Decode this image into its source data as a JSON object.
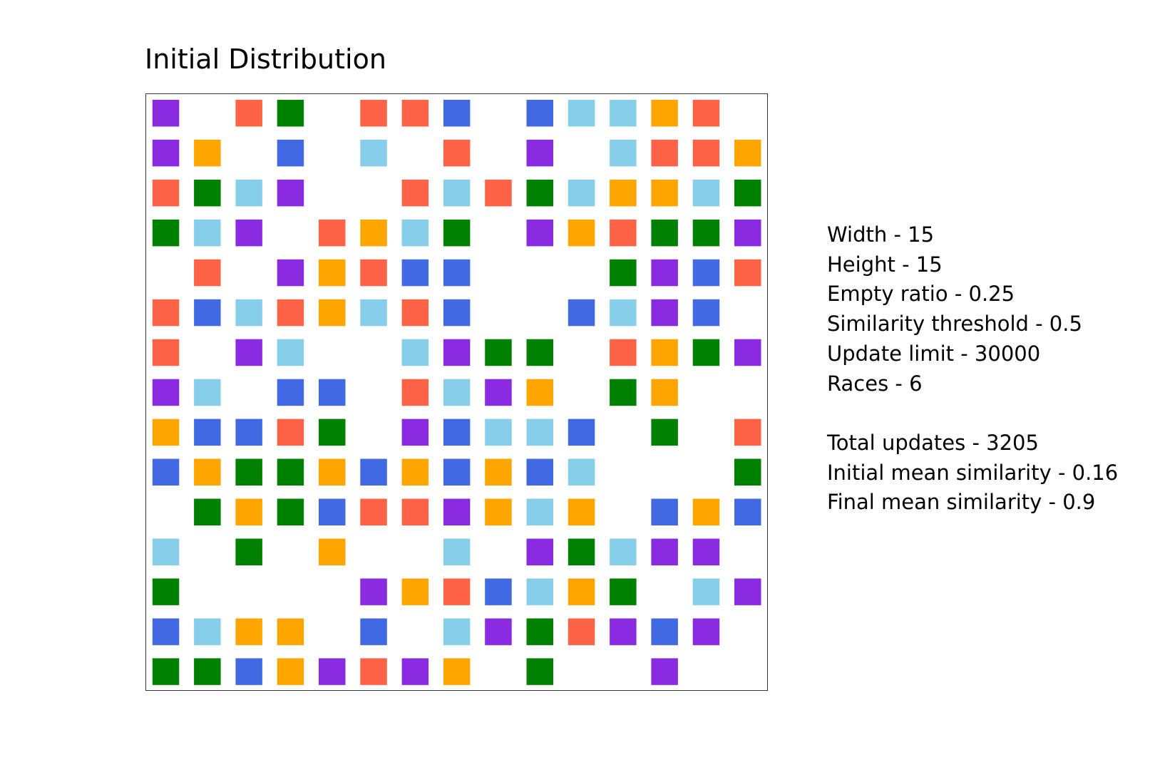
{
  "chart_data": {
    "type": "heatmap",
    "title": "Initial Distribution",
    "xlabel": "",
    "ylabel": "",
    "columns": 15,
    "rows": 15,
    "color_legend": {
      "0": "empty",
      "1": "#8A2BE2",
      "2": "#FF6347",
      "3": "#008000",
      "4": "#4169E1",
      "5": "#87CEEB",
      "6": "#FFA500"
    },
    "cells": [
      [
        1,
        0,
        2,
        3,
        0,
        2,
        2,
        4,
        0,
        4,
        5,
        5,
        6,
        2,
        0
      ],
      [
        1,
        6,
        0,
        4,
        0,
        5,
        0,
        2,
        0,
        1,
        0,
        5,
        2,
        2,
        6
      ],
      [
        2,
        3,
        5,
        1,
        0,
        0,
        2,
        5,
        2,
        3,
        5,
        6,
        6,
        5,
        3
      ],
      [
        3,
        5,
        1,
        0,
        2,
        6,
        5,
        3,
        0,
        1,
        6,
        2,
        3,
        3,
        1
      ],
      [
        0,
        2,
        0,
        1,
        6,
        2,
        4,
        4,
        0,
        0,
        0,
        3,
        1,
        4,
        2
      ],
      [
        2,
        4,
        5,
        2,
        6,
        5,
        2,
        4,
        0,
        0,
        4,
        5,
        1,
        4,
        0
      ],
      [
        2,
        0,
        1,
        5,
        0,
        0,
        5,
        1,
        3,
        3,
        0,
        2,
        6,
        3,
        1
      ],
      [
        1,
        5,
        0,
        4,
        4,
        0,
        2,
        5,
        1,
        6,
        0,
        3,
        6,
        0,
        0
      ],
      [
        6,
        4,
        4,
        2,
        3,
        0,
        1,
        4,
        5,
        5,
        4,
        0,
        3,
        0,
        2
      ],
      [
        4,
        6,
        3,
        3,
        6,
        4,
        6,
        4,
        6,
        4,
        5,
        0,
        0,
        0,
        3
      ],
      [
        0,
        3,
        6,
        3,
        4,
        2,
        2,
        1,
        6,
        5,
        6,
        0,
        4,
        6,
        4
      ],
      [
        5,
        0,
        3,
        0,
        6,
        0,
        0,
        5,
        0,
        1,
        3,
        5,
        1,
        1,
        0
      ],
      [
        3,
        0,
        0,
        0,
        0,
        1,
        6,
        2,
        4,
        5,
        6,
        3,
        0,
        5,
        1
      ],
      [
        4,
        5,
        6,
        6,
        0,
        4,
        0,
        5,
        1,
        3,
        2,
        1,
        4,
        1,
        0
      ],
      [
        3,
        3,
        4,
        6,
        1,
        2,
        1,
        6,
        0,
        3,
        0,
        0,
        1,
        0,
        0
      ]
    ]
  },
  "stats": {
    "width": "Width - 15",
    "height": "Height - 15",
    "empty_ratio": "Empty ratio - 0.25",
    "similarity_threshold": "Similarity threshold - 0.5",
    "update_limit": "Update limit - 30000",
    "races": "Races - 6",
    "total_updates": "Total updates - 3205",
    "initial_mean_similarity": "Initial mean similarity - 0.16",
    "final_mean_similarity": "Final mean similarity - 0.9"
  }
}
